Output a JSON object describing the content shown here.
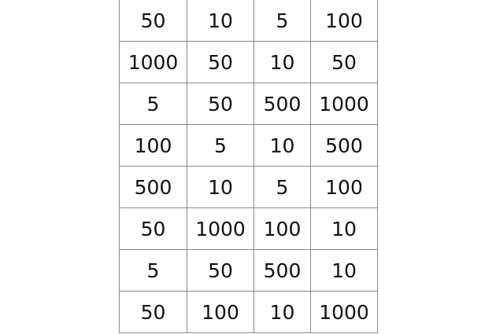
{
  "table": {
    "rows": [
      [
        "50",
        "10",
        "5",
        "100"
      ],
      [
        "1000",
        "50",
        "10",
        "50"
      ],
      [
        "5",
        "50",
        "500",
        "1000"
      ],
      [
        "100",
        "5",
        "10",
        "500"
      ],
      [
        "500",
        "10",
        "5",
        "100"
      ],
      [
        "50",
        "1000",
        "100",
        "10"
      ],
      [
        "5",
        "50",
        "500",
        "10"
      ],
      [
        "50",
        "100",
        "10",
        "1000"
      ]
    ]
  }
}
